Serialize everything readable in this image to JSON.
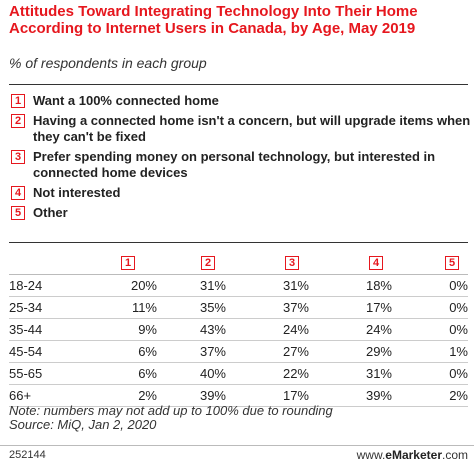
{
  "title": "Attitudes Toward Integrating Technology Into Their Home According to Internet Users in Canada, by Age, May 2019",
  "subtitle": "% of respondents in each group",
  "legend": [
    {
      "num": "1",
      "label": "Want a 100% connected home"
    },
    {
      "num": "2",
      "label": "Having a connected home isn't a concern, but will upgrade items when they can't be fixed"
    },
    {
      "num": "3",
      "label": "Prefer spending money on personal technology, but interested in connected home devices"
    },
    {
      "num": "4",
      "label": "Not interested"
    },
    {
      "num": "5",
      "label": "Other"
    }
  ],
  "note": "Note: numbers may not add up to 100% due to rounding",
  "source": "Source: MiQ, Jan 2, 2020",
  "footer": {
    "id": "252144",
    "brand_prefix": "www.",
    "brand_bold": "eMarketer",
    "brand_suffix": ".com"
  },
  "chart_data": {
    "type": "table",
    "columns": [
      "1",
      "2",
      "3",
      "4",
      "5"
    ],
    "rows": [
      {
        "label": "18-24",
        "values": [
          "20%",
          "31%",
          "31%",
          "18%",
          "0%"
        ]
      },
      {
        "label": "25-34",
        "values": [
          "11%",
          "35%",
          "37%",
          "17%",
          "0%"
        ]
      },
      {
        "label": "35-44",
        "values": [
          "9%",
          "43%",
          "24%",
          "24%",
          "0%"
        ]
      },
      {
        "label": "45-54",
        "values": [
          "6%",
          "37%",
          "27%",
          "29%",
          "1%"
        ]
      },
      {
        "label": "55-65",
        "values": [
          "6%",
          "40%",
          "22%",
          "31%",
          "0%"
        ]
      },
      {
        "label": "66+",
        "values": [
          "2%",
          "39%",
          "17%",
          "39%",
          "2%"
        ]
      }
    ]
  }
}
